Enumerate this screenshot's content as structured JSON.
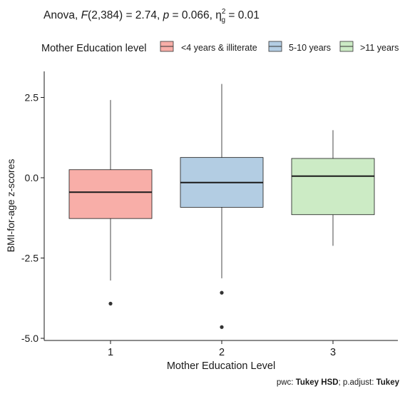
{
  "stat_subtitle": {
    "prefix": "Anova, ",
    "F_symbol": "F",
    "F_args": "(2,384) = 2.74, ",
    "p_symbol": "p",
    "p_text": " = 0.066, ",
    "eta_symbol": "η",
    "eta_superscript": "2",
    "eta_subscript": "g",
    "eta_text": " = 0.01"
  },
  "legend": {
    "title": "Mother Education level",
    "entries": [
      {
        "label": "<4 years & illiterate",
        "color": "#F8AEA8"
      },
      {
        "label": "5-10 years",
        "color": "#B3CDE3"
      },
      {
        "label": ">11 years",
        "color": "#CCEBC5"
      }
    ]
  },
  "footnote": {
    "prefix": "pwc: ",
    "method": "Tukey HSD",
    "middle": "; p.adjust: ",
    "adjust": "Tukey"
  },
  "chart_data": {
    "type": "boxplot",
    "xlabel": "Mother Education Level",
    "ylabel": "BMI-for-age z-scores",
    "categories": [
      "1",
      "2",
      "3"
    ],
    "ylim": [
      -5.0,
      3.0
    ],
    "yticks": [
      2.5,
      0.0,
      -2.5,
      -5.0
    ],
    "ytick_labels": [
      "2.5",
      "0.0",
      "-2.5",
      "-5.0"
    ],
    "grid": false,
    "legend_position": "top",
    "boxes": [
      {
        "category": "1",
        "legend_label": "<4 years & illiterate",
        "whisker_low": -3.2,
        "q1": -1.27,
        "median": -0.45,
        "q3": 0.25,
        "whisker_high": 2.42,
        "outliers": [
          -3.92
        ],
        "color": "#F8AEA8"
      },
      {
        "category": "2",
        "legend_label": "5-10 years",
        "whisker_low": -3.13,
        "q1": -0.92,
        "median": -0.15,
        "q3": 0.63,
        "whisker_high": 2.92,
        "outliers": [
          -3.58,
          -4.65
        ],
        "color": "#B3CDE3"
      },
      {
        "category": "3",
        "legend_label": ">11 years",
        "whisker_low": -2.12,
        "q1": -1.15,
        "median": 0.05,
        "q3": 0.6,
        "whisker_high": 1.48,
        "outliers": [],
        "color": "#CCEBC5"
      }
    ]
  }
}
